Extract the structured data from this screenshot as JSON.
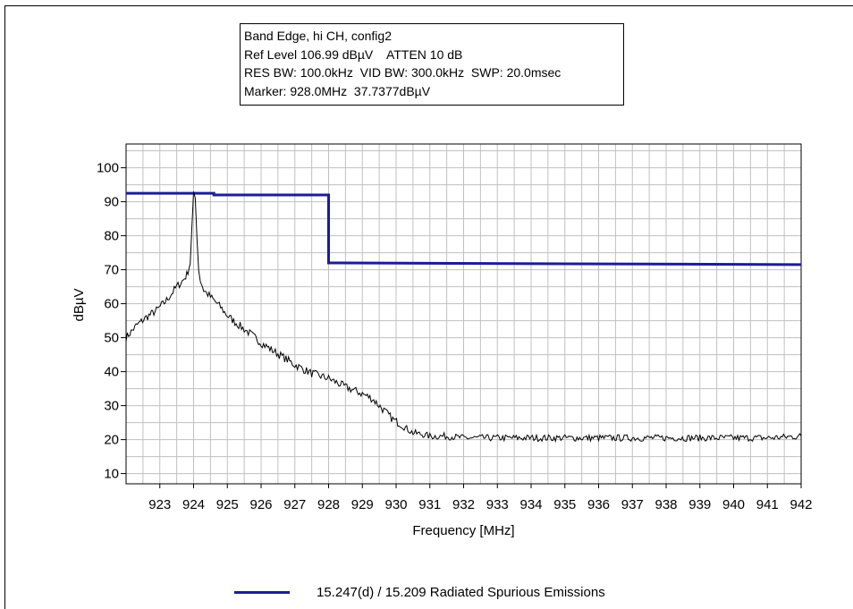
{
  "info_box": {
    "lines": [
      "Band Edge, hi CH, config2",
      "Ref Level 106.99 dBµV    ATTEN 10 dB",
      "RES BW: 100.0kHz  VID BW: 300.0kHz  SWP: 20.0msec",
      "Marker: 928.0MHz  37.7377dBµV"
    ]
  },
  "colors": {
    "limit_line": "#1c1c9a",
    "trace": "#000000",
    "grid": "#c0c0c0"
  },
  "chart_data": {
    "type": "line",
    "xlabel": "Frequency [MHz]",
    "ylabel": "dBµV",
    "xlim": [
      922.0,
      942.0
    ],
    "ylim": [
      7.0,
      107.0
    ],
    "x_ticks": [
      923,
      924,
      925,
      926,
      927,
      928,
      929,
      930,
      931,
      932,
      933,
      934,
      935,
      936,
      937,
      938,
      939,
      940,
      941,
      942
    ],
    "y_ticks": [
      10,
      20,
      30,
      40,
      50,
      60,
      70,
      80,
      90,
      100
    ],
    "grid": true,
    "legend_position": "bottom",
    "series": [
      {
        "name": "15.247(d) / 15.209 Radiated Spurious Emissions",
        "role": "limit",
        "x": [
          922.0,
          924.6,
          924.6,
          928.0,
          928.0,
          942.0
        ],
        "y": [
          92.5,
          92.5,
          92.0,
          92.0,
          72.0,
          71.5
        ]
      },
      {
        "role": "trace",
        "x": [
          922.0,
          922.3,
          922.6,
          922.9,
          923.2,
          923.5,
          923.7,
          923.8,
          923.9,
          923.95,
          924.0,
          924.05,
          924.1,
          924.15,
          924.2,
          924.3,
          924.5,
          924.8,
          925.0,
          925.3,
          925.7,
          926.0,
          926.3,
          926.7,
          927.0,
          927.5,
          928.0,
          928.5,
          929.0,
          929.3,
          929.6,
          929.9,
          930.2,
          930.5,
          930.8,
          931.0,
          931.5,
          932.0,
          933.0,
          934.0,
          935.0,
          936.0,
          937.0,
          938.0,
          939.0,
          940.0,
          941.0,
          942.0
        ],
        "y": [
          50.0,
          53.5,
          56.0,
          58.0,
          61.0,
          65.0,
          67.0,
          68.5,
          72.0,
          82.0,
          92.0,
          91.0,
          80.0,
          70.0,
          67.0,
          64.0,
          62.0,
          59.0,
          56.5,
          54.0,
          51.0,
          48.5,
          46.5,
          44.0,
          42.0,
          39.5,
          38.0,
          35.5,
          33.5,
          32.0,
          29.0,
          26.0,
          24.0,
          22.0,
          21.5,
          21.0,
          21.0,
          20.5,
          20.5,
          20.5,
          20.5,
          20.5,
          20.5,
          20.5,
          20.5,
          20.5,
          20.5,
          21.0
        ]
      }
    ]
  }
}
